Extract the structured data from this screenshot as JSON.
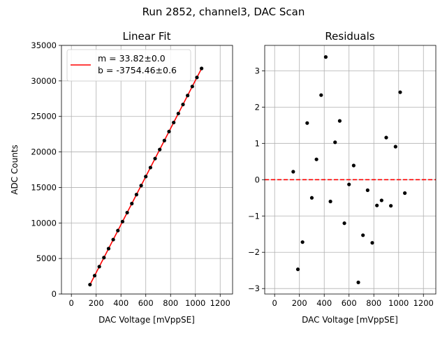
{
  "figure": {
    "title": "Run 2852, channel3, DAC Scan"
  },
  "colors": {
    "fit_line": "#ff0000",
    "points": "#000000",
    "zero_line": "#ff0000"
  },
  "chart_data": [
    {
      "type": "scatter",
      "title": "Linear Fit",
      "xlabel": "DAC Voltage [mVppSE]",
      "ylabel": "ADC Counts",
      "xlim": [
        -80,
        1300
      ],
      "ylim": [
        0,
        35000
      ],
      "xticks": [
        0,
        200,
        400,
        600,
        800,
        1000,
        1200
      ],
      "yticks": [
        0,
        5000,
        10000,
        15000,
        20000,
        25000,
        30000,
        35000
      ],
      "grid": true,
      "legend": {
        "placement": "upper-left",
        "entries": [
          "m = 33.82±0.0",
          "b = -3754.46±0.6"
        ]
      },
      "fit": {
        "slope": 33.82,
        "intercept": -3754.46,
        "x_range": [
          150,
          1050
        ]
      },
      "x": [
        150,
        187.5,
        225,
        262.5,
        300,
        337.5,
        375,
        412.5,
        450,
        487.5,
        525,
        562.5,
        600,
        637.5,
        675,
        712.5,
        750,
        787.5,
        825,
        862.5,
        900,
        937.5,
        975,
        1012.5,
        1050
      ],
      "y": [
        1319,
        2586,
        3854,
        5124,
        6390,
        7660,
        8931,
        10195,
        11461,
        12730,
        14000,
        15264,
        16533,
        17802,
        19067,
        20337,
        21605,
        22873,
        24140,
        25410,
        26680,
        27946,
        29216,
        30487,
        31756
      ]
    },
    {
      "type": "scatter",
      "title": "Residuals",
      "xlabel": "DAC Voltage [mVppSE]",
      "xlim": [
        -80,
        1300
      ],
      "ylim": [
        -3.15,
        3.7
      ],
      "xticks": [
        0,
        200,
        400,
        600,
        800,
        1000,
        1200
      ],
      "yticks": [
        -3,
        -2,
        -1,
        0,
        1,
        2,
        3
      ],
      "grid": true,
      "zero_line": 0,
      "x": [
        150,
        187.5,
        225,
        262.5,
        300,
        337.5,
        375,
        412.5,
        450,
        487.5,
        525,
        562.5,
        600,
        637.5,
        675,
        712.5,
        750,
        787.5,
        825,
        862.5,
        900,
        937.5,
        975,
        1012.5,
        1050
      ],
      "y": [
        0.22,
        -2.47,
        -1.72,
        1.56,
        -0.5,
        0.56,
        2.33,
        3.38,
        -0.6,
        1.03,
        1.62,
        -1.2,
        -0.13,
        0.39,
        -2.83,
        -1.53,
        -0.29,
        -1.74,
        -0.71,
        -0.57,
        1.16,
        -0.72,
        0.91,
        2.41,
        -0.37
      ]
    }
  ]
}
